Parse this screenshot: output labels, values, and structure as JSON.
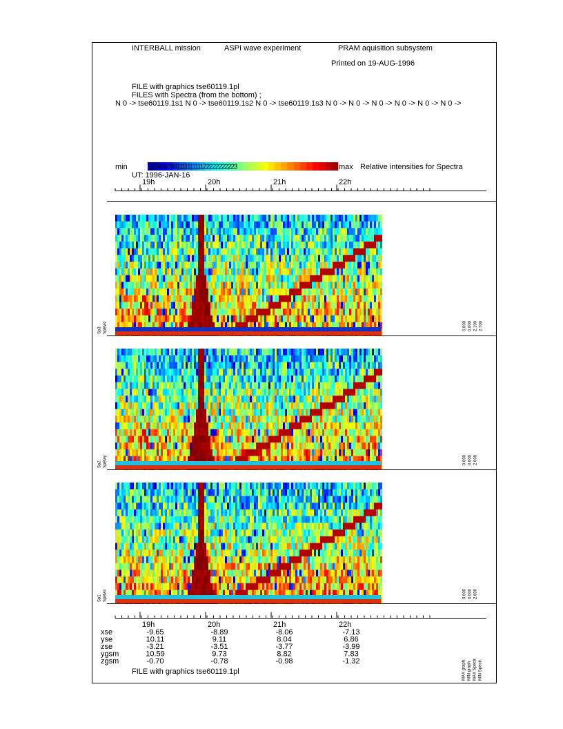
{
  "header": {
    "mission": "INTERBALL mission",
    "experiment": "ASPI wave experiment",
    "subsystem": "PRAM aquisition subsystem",
    "printed": "Printed on 19-AUG-1996"
  },
  "files": {
    "graphics": "FILE with graphics tse60119.1pl",
    "spectra": "FILES with Spectra (from the bottom) ;",
    "list": "N 0 -> tse60119.1s1 N 0 -> tse60119.1s2 N 0 -> tse60119.1s3 N 0 -> N 0 -> N 0 -> N 0 -> N 0 -> N 0 ->"
  },
  "colorbar": {
    "min": "min",
    "max": "max",
    "digits": "123456789111111111122222222223",
    "label": "Relative intensities for Spectra"
  },
  "ut": "UT: 1996-JAN-16",
  "time_labels": [
    "19h",
    "20h",
    "21h",
    "22h"
  ],
  "panels": [
    {
      "name": "Sp3",
      "component": "SpBwz",
      "scale": [
        "0.000",
        "0.000",
        "2.100",
        "2.700"
      ]
    },
    {
      "name": "Sp2",
      "component": "SpBwy",
      "scale": [
        "0.000",
        "0.000",
        "2.000"
      ]
    },
    {
      "name": "Sp1",
      "component": "SpBwx",
      "scale": [
        "0.000",
        "0.000",
        "2.800"
      ]
    }
  ],
  "orbit": {
    "rows": [
      {
        "name": "xse",
        "values": [
          "-9.65",
          "-8.89",
          "-8.06",
          "-7.13"
        ]
      },
      {
        "name": "yse",
        "values": [
          "10.11",
          "9.11",
          "8.04",
          "6.86"
        ]
      },
      {
        "name": "zse",
        "values": [
          "-3.21",
          "-3.51",
          "-3.77",
          "-3.99"
        ]
      },
      {
        "name": "ygsm",
        "values": [
          "10.59",
          "9.73",
          "8.82",
          "7.83"
        ]
      },
      {
        "name": "zgsm",
        "values": [
          "-0.70",
          "-0.78",
          "-0.98",
          "-1.32"
        ]
      }
    ]
  },
  "footer": "FILE with graphics tse60119.1pl",
  "legend_vertical": [
    "MAX graph.",
    "MIN graph",
    "MAX Spectr.",
    "MIN Spectr."
  ]
}
